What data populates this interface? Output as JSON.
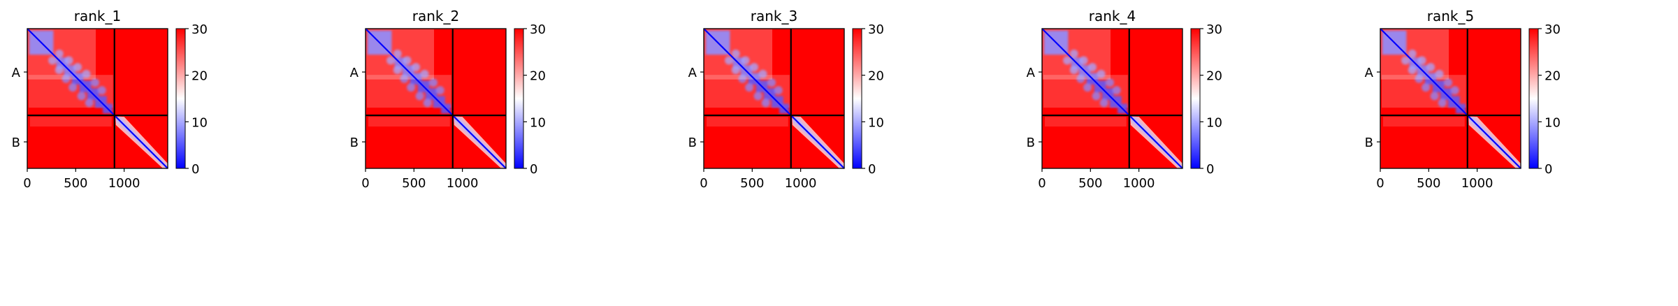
{
  "chart_data": {
    "type": "heatmap",
    "panels": [
      {
        "title": "rank_1"
      },
      {
        "title": "rank_2"
      },
      {
        "title": "rank_3"
      },
      {
        "title": "rank_4"
      },
      {
        "title": "rank_5"
      }
    ],
    "chain_labels": [
      "A",
      "B"
    ],
    "chain_boundary": 900,
    "x_range": [
      0,
      1450
    ],
    "x_ticks": [
      0,
      500,
      1000
    ],
    "x_tick_labels": [
      "0",
      "500",
      "1000"
    ],
    "colorbar": {
      "range": [
        0,
        30
      ],
      "ticks": [
        0,
        10,
        20,
        30
      ],
      "tick_labels": [
        "0",
        "10",
        "20",
        "30"
      ],
      "colormap": [
        "#0000ff",
        "#ffffff",
        "#ff0000"
      ]
    },
    "colors": {
      "low": "#0000ff",
      "mid": "#ffffff",
      "high": "#ff0000",
      "separator": "#000000"
    }
  }
}
